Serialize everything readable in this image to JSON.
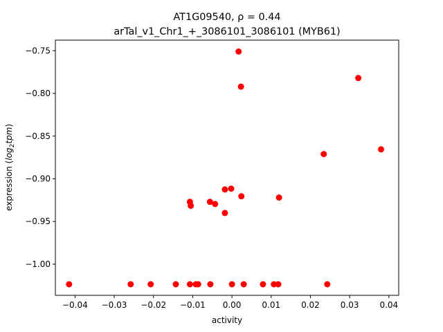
{
  "chart_data": {
    "type": "scatter",
    "title_line1": "AT1G09540, ρ = 0.44",
    "title_line2": "arTal_v1_Chr1_+_3086101_3086101 (MYB61)",
    "xlabel": "activity",
    "ylabel_main": "expression (",
    "ylabel_math": "log",
    "ylabel_sub": "2",
    "ylabel_math2": "tpm",
    "ylabel_close": ")",
    "xlim": [
      -0.045,
      0.0425
    ],
    "ylim": [
      -1.0365,
      -0.7376
    ],
    "xticks": [
      {
        "value": -0.04,
        "label": "−0.04"
      },
      {
        "value": -0.03,
        "label": "−0.03"
      },
      {
        "value": -0.02,
        "label": "−0.02"
      },
      {
        "value": -0.01,
        "label": "−0.01"
      },
      {
        "value": 0.0,
        "label": "0.00"
      },
      {
        "value": 0.01,
        "label": "0.01"
      },
      {
        "value": 0.02,
        "label": "0.02"
      },
      {
        "value": 0.03,
        "label": "0.03"
      },
      {
        "value": 0.04,
        "label": "0.04"
      }
    ],
    "yticks": [
      {
        "value": -1.0,
        "label": "−1.00"
      },
      {
        "value": -0.95,
        "label": "−0.95"
      },
      {
        "value": -0.9,
        "label": "−0.90"
      },
      {
        "value": -0.85,
        "label": "−0.85"
      },
      {
        "value": -0.8,
        "label": "−0.80"
      },
      {
        "value": -0.75,
        "label": "−0.75"
      }
    ],
    "marker_color": "#ff0000",
    "grid": false,
    "points": [
      {
        "x": -0.0415,
        "y": -1.0235
      },
      {
        "x": -0.0258,
        "y": -1.0235
      },
      {
        "x": -0.0207,
        "y": -1.0235
      },
      {
        "x": -0.0143,
        "y": -1.0235
      },
      {
        "x": -0.0107,
        "y": -1.0235
      },
      {
        "x": -0.0092,
        "y": -1.0235
      },
      {
        "x": -0.0086,
        "y": -1.0235
      },
      {
        "x": -0.0055,
        "y": -1.0235
      },
      {
        "x": 0.0,
        "y": -1.0235
      },
      {
        "x": 0.003,
        "y": -1.0235
      },
      {
        "x": 0.0079,
        "y": -1.0235
      },
      {
        "x": 0.0107,
        "y": -1.0235
      },
      {
        "x": 0.0118,
        "y": -1.0235
      },
      {
        "x": 0.0243,
        "y": -1.0235
      },
      {
        "x": -0.0107,
        "y": -0.927
      },
      {
        "x": -0.0105,
        "y": -0.9315
      },
      {
        "x": -0.0056,
        "y": -0.927
      },
      {
        "x": -0.0043,
        "y": -0.9295
      },
      {
        "x": -0.0018,
        "y": -0.94
      },
      {
        "x": -0.0018,
        "y": -0.9125
      },
      {
        "x": -0.0002,
        "y": -0.9115
      },
      {
        "x": 0.0024,
        "y": -0.9205
      },
      {
        "x": 0.012,
        "y": -0.922
      },
      {
        "x": 0.0017,
        "y": -0.751
      },
      {
        "x": 0.0023,
        "y": -0.792
      },
      {
        "x": 0.0234,
        "y": -0.871
      },
      {
        "x": 0.0322,
        "y": -0.782
      },
      {
        "x": 0.038,
        "y": -0.8655
      }
    ]
  }
}
